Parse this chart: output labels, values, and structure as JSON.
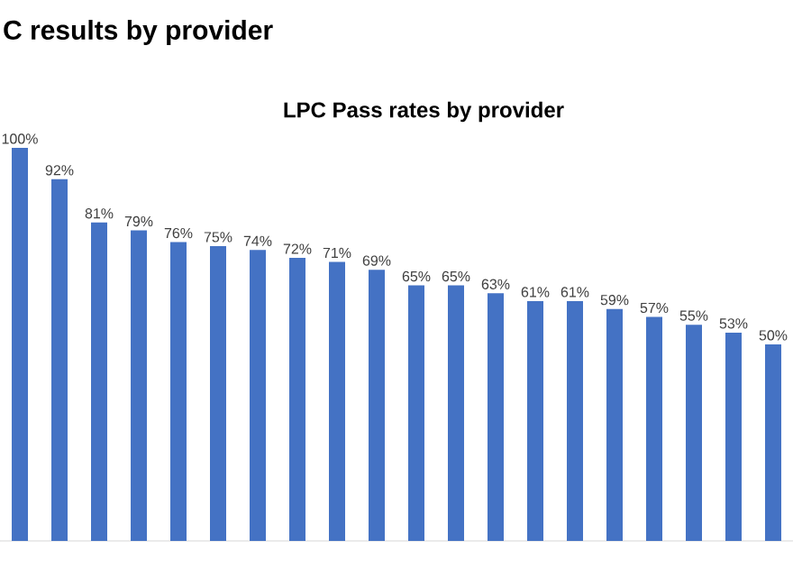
{
  "chart_data": {
    "type": "bar",
    "title": "C results by provider",
    "subtitle": "LPC Pass rates by provider",
    "categories": [
      null,
      null,
      null,
      null,
      null,
      null,
      null,
      null,
      null,
      null,
      null,
      null,
      null,
      null,
      null,
      null,
      null,
      null,
      null,
      null
    ],
    "values": [
      100,
      92,
      81,
      79,
      76,
      75,
      74,
      72,
      71,
      69,
      65,
      65,
      63,
      61,
      61,
      59,
      57,
      55,
      53,
      50
    ],
    "value_labels": [
      "100%",
      "92%",
      "81%",
      "79%",
      "76%",
      "75%",
      "74%",
      "72%",
      "71%",
      "69%",
      "65%",
      "65%",
      "63%",
      "61%",
      "61%",
      "59%",
      "57%",
      "55%",
      "53%",
      "50%"
    ],
    "color": "#4472c4",
    "ylim": [
      0,
      100
    ]
  }
}
